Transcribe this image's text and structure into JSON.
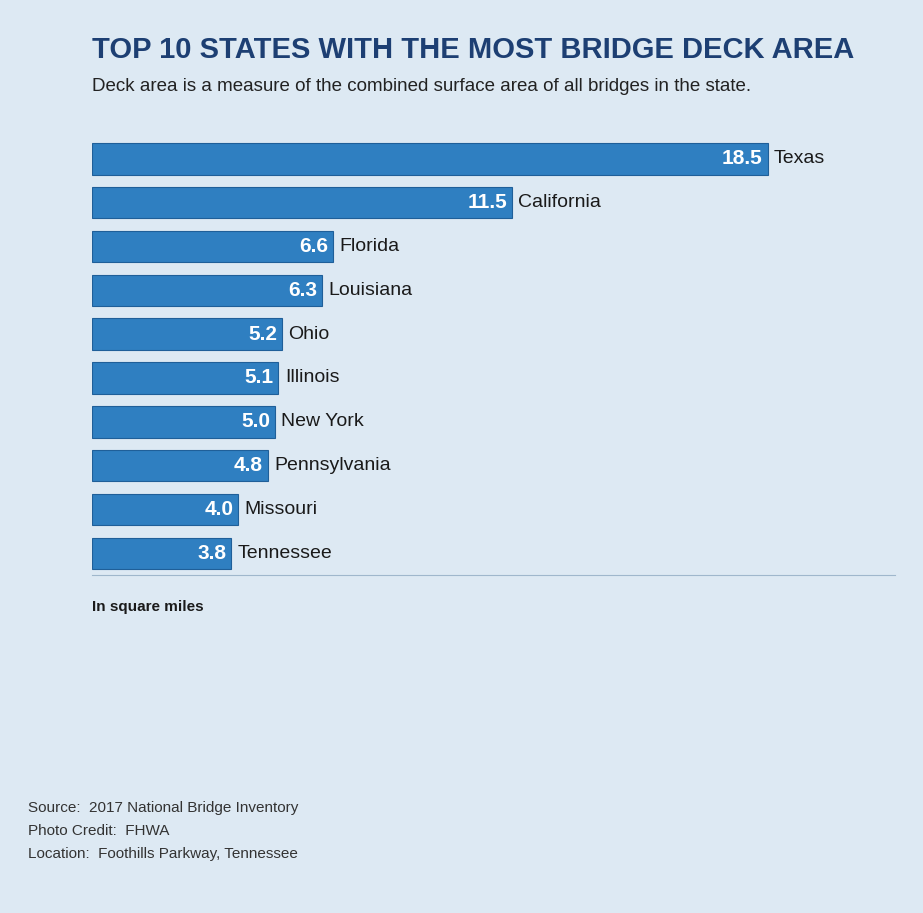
{
  "chart_data": {
    "type": "bar",
    "orientation": "horizontal",
    "title": "TOP 10 STATES WITH THE MOST BRIDGE DECK AREA",
    "subtitle": "Deck area is a measure of the combined surface area of all bridges in the state.",
    "categories": [
      "Texas",
      "California",
      "Florida",
      "Louisiana",
      "Ohio",
      "Illinois",
      "New York",
      "Pennsylvania",
      "Missouri",
      "Tennessee"
    ],
    "values": [
      18.5,
      11.5,
      6.6,
      6.3,
      5.2,
      5.1,
      5.0,
      4.8,
      4.0,
      3.8
    ],
    "color": "#2f7fc1",
    "xlim": [
      0,
      22
    ],
    "data_labels": true,
    "tick_labels": false,
    "grid": false,
    "annotations": [
      "In square miles",
      "Source:  2017 National Bridge Inventory",
      "Photo Credit:  FHWA",
      "Location:  Foothills Parkway, Tennessee"
    ]
  }
}
